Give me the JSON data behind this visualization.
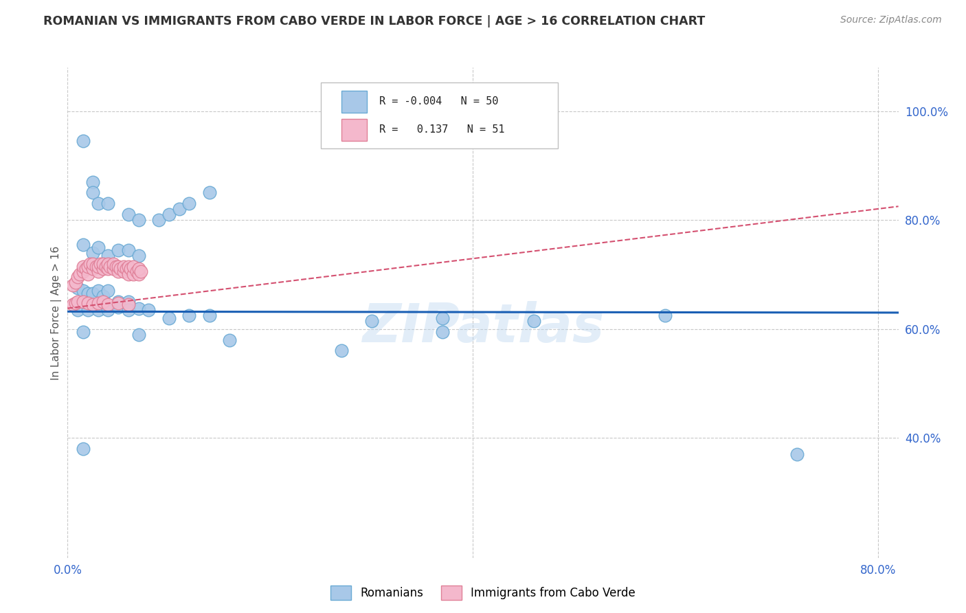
{
  "title": "ROMANIAN VS IMMIGRANTS FROM CABO VERDE IN LABOR FORCE | AGE > 16 CORRELATION CHART",
  "source": "Source: ZipAtlas.com",
  "ylabel": "In Labor Force | Age > 16",
  "xlim": [
    0.0,
    0.82
  ],
  "ylim": [
    0.18,
    1.08
  ],
  "xticks": [
    0.0,
    0.8
  ],
  "xticklabels": [
    "0.0%",
    "80.0%"
  ],
  "yticks_right": [
    0.4,
    0.6,
    0.8,
    1.0
  ],
  "ytick_labels_right": [
    "40.0%",
    "60.0%",
    "80.0%",
    "100.0%"
  ],
  "watermark": "ZIPatlas",
  "series1_color": "#a8c8e8",
  "series1_edge": "#6aaad4",
  "series2_color": "#f4b8cc",
  "series2_edge": "#e08098",
  "line1_color": "#1a5fb4",
  "line2_color": "#d45070",
  "grid_color": "#c8c8c8",
  "background_color": "#ffffff",
  "blue_scatter_x": [
    0.015,
    0.025,
    0.025,
    0.03,
    0.04,
    0.06,
    0.07,
    0.09,
    0.1,
    0.11,
    0.12,
    0.14,
    0.015,
    0.025,
    0.03,
    0.04,
    0.05,
    0.06,
    0.07,
    0.01,
    0.015,
    0.02,
    0.025,
    0.03,
    0.035,
    0.04,
    0.05,
    0.06,
    0.01,
    0.02,
    0.03,
    0.04,
    0.05,
    0.06,
    0.07,
    0.08,
    0.1,
    0.12,
    0.14,
    0.3,
    0.37,
    0.46,
    0.59,
    0.015,
    0.07,
    0.16,
    0.27,
    0.37,
    0.015,
    0.72
  ],
  "blue_scatter_y": [
    0.945,
    0.87,
    0.85,
    0.83,
    0.83,
    0.81,
    0.8,
    0.8,
    0.81,
    0.82,
    0.83,
    0.85,
    0.755,
    0.74,
    0.75,
    0.735,
    0.745,
    0.745,
    0.735,
    0.675,
    0.67,
    0.665,
    0.665,
    0.67,
    0.66,
    0.67,
    0.65,
    0.65,
    0.635,
    0.635,
    0.635,
    0.635,
    0.64,
    0.635,
    0.638,
    0.635,
    0.62,
    0.625,
    0.625,
    0.615,
    0.62,
    0.615,
    0.625,
    0.595,
    0.59,
    0.58,
    0.56,
    0.595,
    0.38,
    0.37
  ],
  "pink_scatter_x": [
    0.005,
    0.008,
    0.01,
    0.012,
    0.015,
    0.015,
    0.018,
    0.02,
    0.02,
    0.022,
    0.025,
    0.025,
    0.028,
    0.03,
    0.03,
    0.032,
    0.035,
    0.035,
    0.038,
    0.04,
    0.04,
    0.042,
    0.045,
    0.045,
    0.048,
    0.05,
    0.05,
    0.052,
    0.055,
    0.055,
    0.058,
    0.06,
    0.06,
    0.062,
    0.065,
    0.065,
    0.068,
    0.07,
    0.07,
    0.072,
    0.005,
    0.008,
    0.01,
    0.015,
    0.02,
    0.025,
    0.03,
    0.035,
    0.04,
    0.05,
    0.06
  ],
  "pink_scatter_y": [
    0.68,
    0.685,
    0.695,
    0.7,
    0.705,
    0.715,
    0.71,
    0.7,
    0.715,
    0.72,
    0.71,
    0.72,
    0.715,
    0.705,
    0.715,
    0.72,
    0.71,
    0.72,
    0.715,
    0.71,
    0.72,
    0.715,
    0.71,
    0.72,
    0.715,
    0.705,
    0.715,
    0.71,
    0.705,
    0.715,
    0.71,
    0.7,
    0.715,
    0.71,
    0.7,
    0.715,
    0.705,
    0.7,
    0.71,
    0.705,
    0.645,
    0.648,
    0.65,
    0.65,
    0.648,
    0.645,
    0.648,
    0.65,
    0.645,
    0.648,
    0.645
  ],
  "line1_x": [
    0.0,
    0.82
  ],
  "line1_y": [
    0.632,
    0.63
  ],
  "line2_x": [
    0.0,
    0.82
  ],
  "line2_y": [
    0.638,
    0.825
  ]
}
